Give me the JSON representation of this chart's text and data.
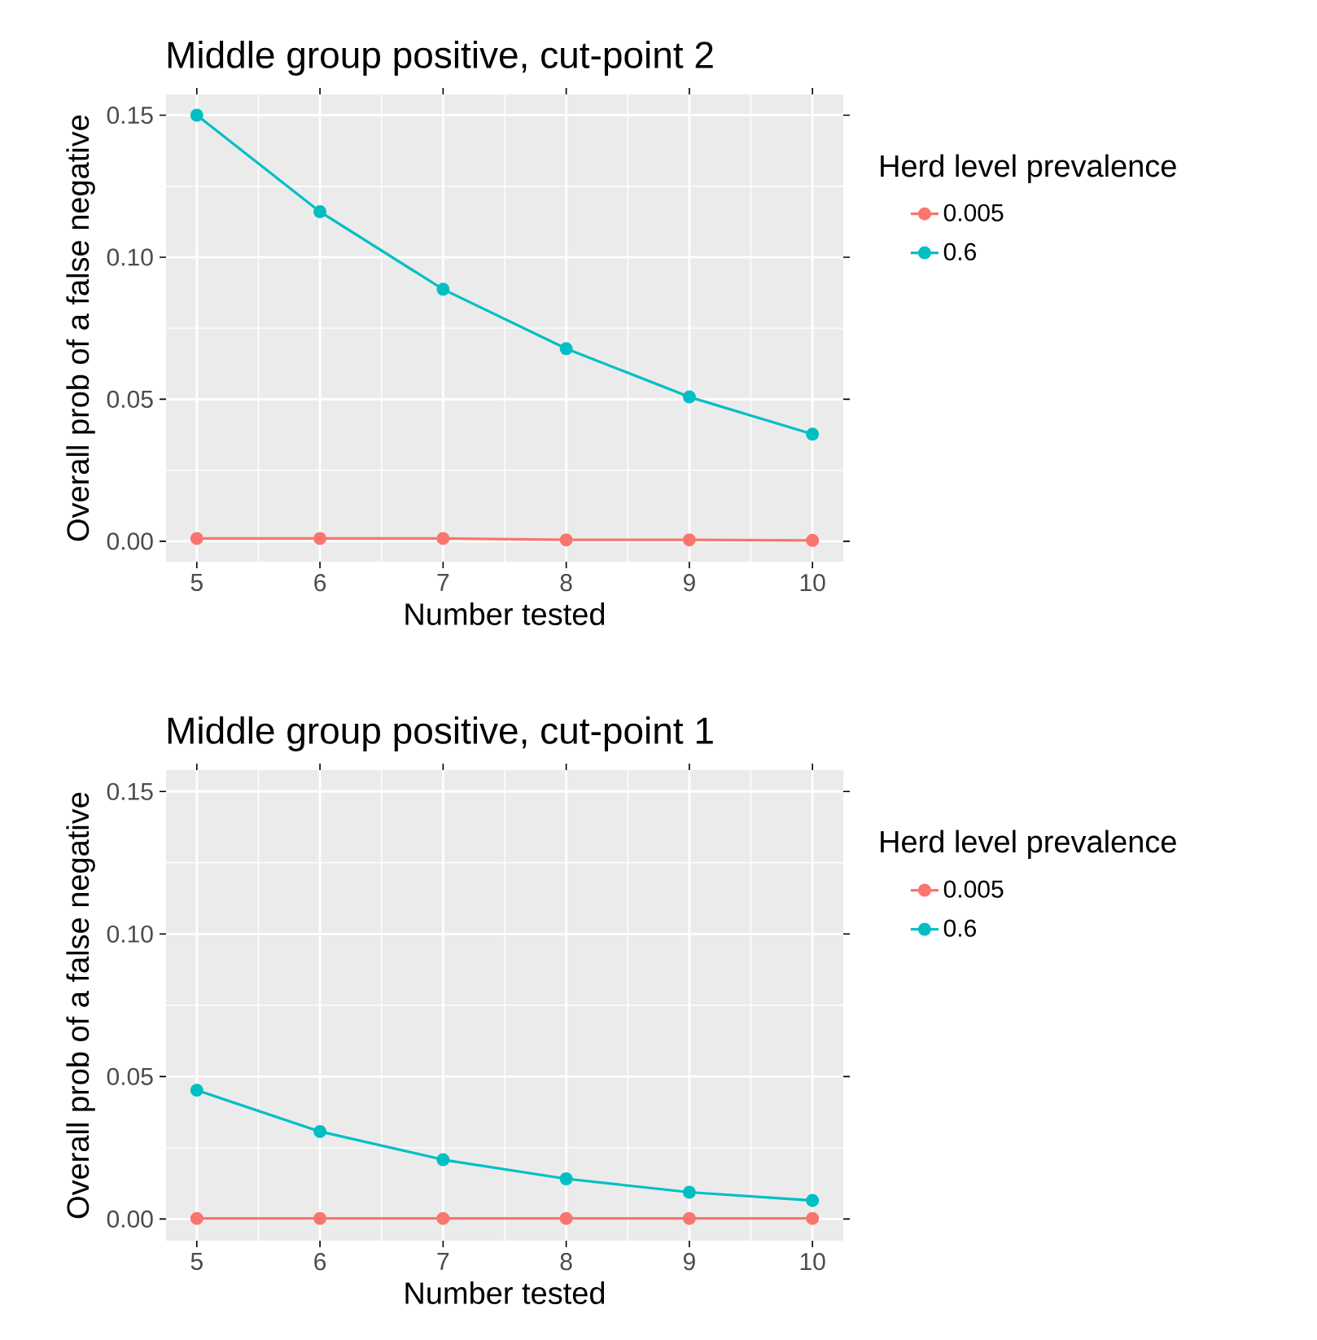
{
  "chart_data": [
    {
      "type": "line",
      "title": "Middle group positive, cut-point 2",
      "xlabel": "Number tested",
      "ylabel": "Overall prob of a false negative",
      "legend_title": "Herd level prevalence",
      "legend": "right",
      "grid": true,
      "marker": "circle",
      "line_style": "solid",
      "x": [
        5,
        6,
        7,
        8,
        9,
        10
      ],
      "xlim": [
        4.75,
        10.25
      ],
      "xticks": [
        5,
        6,
        7,
        8,
        9,
        10
      ],
      "ylim": [
        -0.0072,
        0.1573
      ],
      "yticks": [
        {
          "value": 0,
          "label": "0.00"
        },
        {
          "value": 0.05,
          "label": "0.05"
        },
        {
          "value": 0.1,
          "label": "0.10"
        },
        {
          "value": 0.15,
          "label": "0.15"
        }
      ],
      "series": [
        {
          "name": "0.005",
          "color": "#f8766d",
          "values": [
            0.001,
            0.001,
            0.001,
            0.0005,
            0.0005,
            0.0003
          ]
        },
        {
          "name": "0.6",
          "color": "#00bfc4",
          "values": [
            0.15,
            0.116,
            0.0887,
            0.0678,
            0.0508,
            0.0377
          ]
        }
      ]
    },
    {
      "type": "line",
      "title": "Middle group positive, cut-point 1",
      "xlabel": "Number tested",
      "ylabel": "Overall prob of a false negative",
      "legend_title": "Herd level prevalence",
      "legend": "right",
      "grid": true,
      "marker": "circle",
      "line_style": "solid",
      "x": [
        5,
        6,
        7,
        8,
        9,
        10
      ],
      "xlim": [
        4.75,
        10.25
      ],
      "xticks": [
        5,
        6,
        7,
        8,
        9,
        10
      ],
      "ylim": [
        -0.0076,
        0.1575
      ],
      "yticks": [
        {
          "value": 0,
          "label": "0.00"
        },
        {
          "value": 0.05,
          "label": "0.05"
        },
        {
          "value": 0.1,
          "label": "0.10"
        },
        {
          "value": 0.15,
          "label": "0.15"
        }
      ],
      "series": [
        {
          "name": "0.005",
          "color": "#f8766d",
          "values": [
            0.0002,
            0.0002,
            0.0002,
            0.0002,
            0.0002,
            0.0002
          ]
        },
        {
          "name": "0.6",
          "color": "#00bfc4",
          "values": [
            0.0452,
            0.0307,
            0.0208,
            0.0141,
            0.0094,
            0.0065
          ]
        }
      ]
    }
  ]
}
